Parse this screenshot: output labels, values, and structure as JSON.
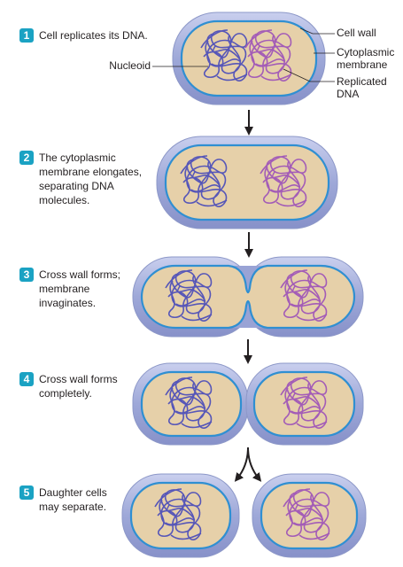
{
  "steps": [
    {
      "number": "1",
      "lines": [
        "Cell replicates its DNA."
      ]
    },
    {
      "number": "2",
      "lines": [
        "The cytoplasmic",
        "membrane elongates,",
        "separating DNA",
        "molecules."
      ]
    },
    {
      "number": "3",
      "lines": [
        "Cross wall forms;",
        "membrane",
        "invaginates."
      ]
    },
    {
      "number": "4",
      "lines": [
        "Cross wall forms",
        "completely."
      ]
    },
    {
      "number": "5",
      "lines": [
        "Daughter cells",
        "may separate."
      ]
    }
  ],
  "labels": {
    "cell_wall": "Cell wall",
    "cytoplasmic_membrane": [
      "Cytoplasmic",
      "membrane"
    ],
    "replicated_dna": [
      "Replicated",
      "DNA"
    ],
    "nucleoid": "Nucleoid"
  }
}
